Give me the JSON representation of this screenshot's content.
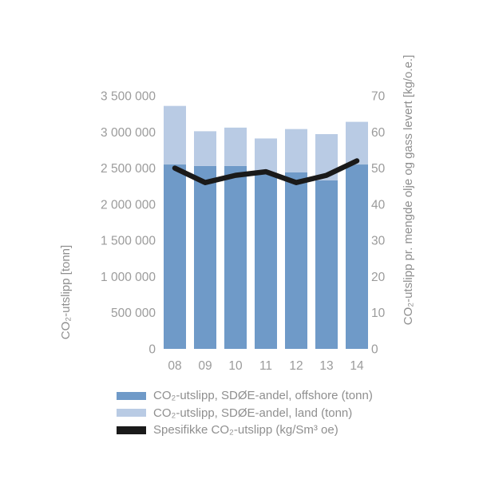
{
  "chart_data": {
    "type": "bar",
    "subtype": "stacked-bars-with-line-overlay",
    "grid": false,
    "legend_position": "bottom-left",
    "categories": [
      "08",
      "09",
      "10",
      "11",
      "12",
      "13",
      "14"
    ],
    "series": [
      {
        "name": "CO₂-utslipp, SDØE-andel, offshore (tonn)",
        "type": "bar",
        "stack": "co2",
        "axis": "left",
        "color": "#6f9ac8",
        "values": [
          2550000,
          2530000,
          2530000,
          2430000,
          2440000,
          2330000,
          2550000
        ]
      },
      {
        "name": "CO₂-utslipp, SDØE-andel, land (tonn)",
        "type": "bar",
        "stack": "co2",
        "axis": "left",
        "color": "#b9cbe4",
        "values": [
          810000,
          480000,
          530000,
          480000,
          600000,
          640000,
          590000
        ]
      },
      {
        "name": "Spesifikke CO₂-utslipp (kg/Sm³ oe)",
        "type": "line",
        "axis": "right",
        "color": "#1a1a1a",
        "values": [
          50,
          46,
          48,
          49,
          46,
          48,
          52
        ]
      }
    ],
    "left_axis": {
      "label": "CO₂-utslipp [tonn]",
      "min": 0,
      "max": 3500000,
      "step": 500000,
      "tick_labels": [
        "0",
        "500 000",
        "1 000 000",
        "1 500 000",
        "2 000 000",
        "2 500 000",
        "3 000 000",
        "3 500 000"
      ]
    },
    "right_axis": {
      "label": "CO₂-utslipp pr. mengde olje og gass levert [kg/o.e.]",
      "min": 0,
      "max": 70,
      "step": 10,
      "tick_labels": [
        "0",
        "10",
        "20",
        "30",
        "40",
        "50",
        "60",
        "70"
      ]
    }
  },
  "colors": {
    "background": "#ffffff",
    "tick_text": "#9b9b9b",
    "axis_title_text": "#8f8f8f",
    "legend_text": "#8f8f8f"
  }
}
